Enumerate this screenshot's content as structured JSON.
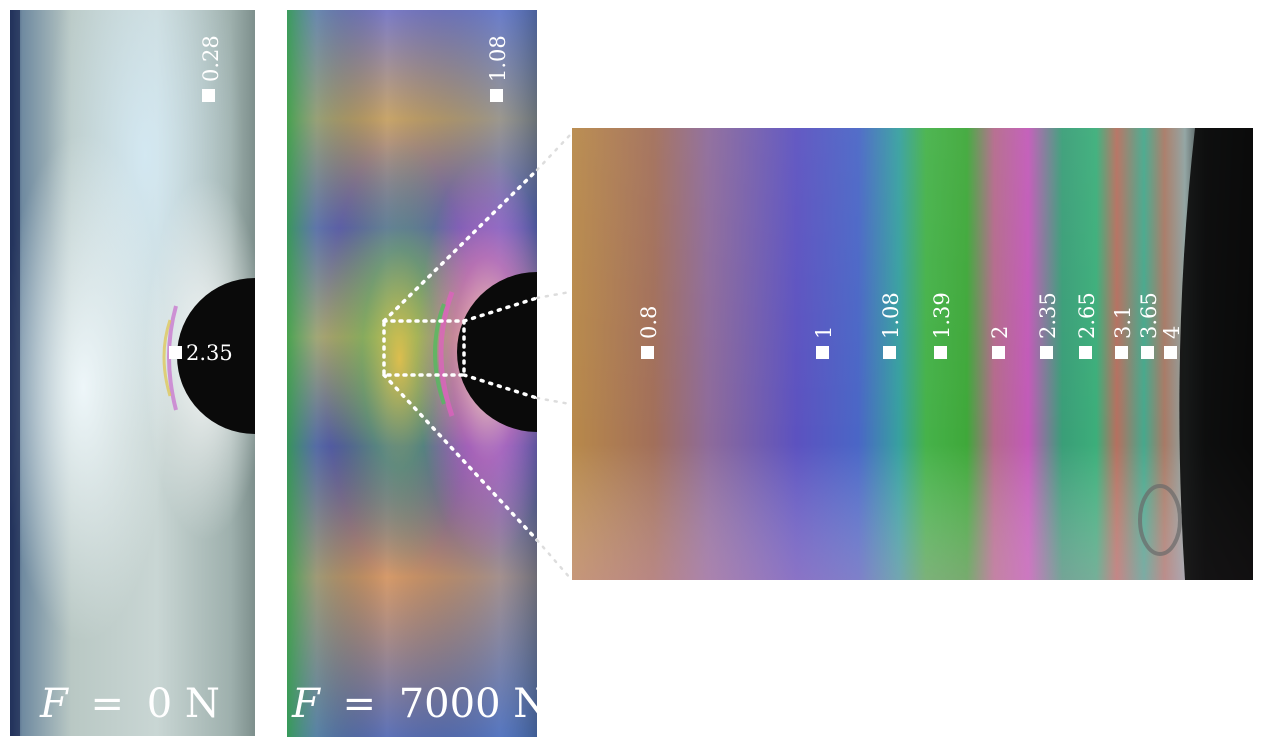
{
  "panels": [
    {
      "id": "unloaded",
      "force_symbol": "F",
      "force_equals": "=",
      "force_value": "0 N",
      "markers": [
        {
          "label": "0.28"
        },
        {
          "label": "2.35"
        }
      ]
    },
    {
      "id": "loaded",
      "force_symbol": "F",
      "force_equals": "=",
      "force_value": "7000 N",
      "markers": [
        {
          "label": "1.08"
        }
      ]
    },
    {
      "id": "zoom",
      "markers": [
        {
          "label": "0.8"
        },
        {
          "label": "1"
        },
        {
          "label": "1.08"
        },
        {
          "label": "1.39"
        },
        {
          "label": "2"
        },
        {
          "label": "2.35"
        },
        {
          "label": "2.65"
        },
        {
          "label": "3.1"
        },
        {
          "label": "3.65"
        },
        {
          "label": "4"
        }
      ]
    }
  ],
  "colors": {
    "background": "#ffffff",
    "hole": "#0a0a0a",
    "marker": "#ffffff",
    "dotted_guide": "#ffffff"
  }
}
